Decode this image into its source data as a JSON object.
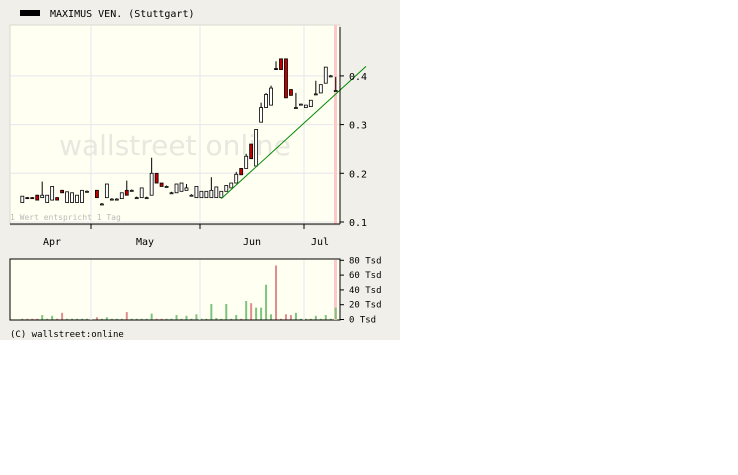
{
  "legend": {
    "title": "MAXIMUS VEN. (Stuttgart)",
    "swatch_color": "#000000"
  },
  "watermark": "wallstreet online",
  "note": "1 Wert entspricht 1 Tag",
  "copyright": "(C) wallstreet:online",
  "colors": {
    "up": "#ffffff",
    "down": "#c00000",
    "vol_up": "#7dc47d",
    "vol_down": "#e08c8c",
    "plot_bg": "#fffff2",
    "trend": "#008800",
    "current_band": "#ffc8c8"
  },
  "chart_data": [
    {
      "type": "candlestick",
      "ylim": [
        0.1,
        0.49
      ],
      "yticks": [
        "0.1",
        "0.2",
        "0.3",
        "0.4"
      ],
      "ytick_values": [
        0.1,
        0.2,
        0.3,
        0.4
      ],
      "xticks": [
        "Apr",
        "May",
        "Jun",
        "Jul"
      ],
      "grid": true,
      "candles": [
        [
          0.14,
          0.153,
          0.14,
          0.153
        ],
        [
          0.15,
          0.151,
          0.148,
          0.149
        ],
        [
          0.15,
          0.151,
          0.148,
          0.149
        ],
        [
          0.155,
          0.156,
          0.145,
          0.145
        ],
        [
          0.15,
          0.183,
          0.15,
          0.155
        ],
        [
          0.14,
          0.155,
          0.14,
          0.155
        ],
        [
          0.145,
          0.173,
          0.145,
          0.173
        ],
        [
          0.15,
          0.151,
          0.145,
          0.145
        ],
        [
          0.165,
          0.166,
          0.16,
          0.16
        ],
        [
          0.14,
          0.162,
          0.14,
          0.162
        ],
        [
          0.14,
          0.16,
          0.14,
          0.16
        ],
        [
          0.14,
          0.155,
          0.14,
          0.155
        ],
        [
          0.14,
          0.165,
          0.14,
          0.165
        ],
        [
          0.163,
          0.165,
          0.161,
          0.163
        ],
        [
          0.165,
          0.166,
          0.15,
          0.15
        ],
        [
          0.137,
          0.139,
          0.135,
          0.137
        ],
        [
          0.15,
          0.178,
          0.15,
          0.178
        ],
        [
          0.147,
          0.149,
          0.145,
          0.147
        ],
        [
          0.147,
          0.149,
          0.145,
          0.147
        ],
        [
          0.148,
          0.16,
          0.148,
          0.16
        ],
        [
          0.165,
          0.185,
          0.155,
          0.155
        ],
        [
          0.165,
          0.167,
          0.163,
          0.165
        ],
        [
          0.15,
          0.152,
          0.148,
          0.15
        ],
        [
          0.15,
          0.17,
          0.15,
          0.17
        ],
        [
          0.15,
          0.152,
          0.148,
          0.15
        ],
        [
          0.155,
          0.232,
          0.155,
          0.2
        ],
        [
          0.2,
          0.2,
          0.18,
          0.18
        ],
        [
          0.18,
          0.18,
          0.173,
          0.173
        ],
        [
          0.173,
          0.175,
          0.171,
          0.173
        ],
        [
          0.16,
          0.162,
          0.158,
          0.16
        ],
        [
          0.16,
          0.178,
          0.16,
          0.178
        ],
        [
          0.163,
          0.18,
          0.163,
          0.18
        ],
        [
          0.165,
          0.178,
          0.165,
          0.17
        ],
        [
          0.155,
          0.157,
          0.153,
          0.155
        ],
        [
          0.15,
          0.173,
          0.15,
          0.173
        ],
        [
          0.15,
          0.163,
          0.15,
          0.163
        ],
        [
          0.15,
          0.163,
          0.15,
          0.163
        ],
        [
          0.15,
          0.192,
          0.15,
          0.165
        ],
        [
          0.15,
          0.172,
          0.15,
          0.172
        ],
        [
          0.15,
          0.163,
          0.15,
          0.163
        ],
        [
          0.163,
          0.175,
          0.163,
          0.175
        ],
        [
          0.17,
          0.18,
          0.17,
          0.18
        ],
        [
          0.18,
          0.203,
          0.18,
          0.198
        ],
        [
          0.21,
          0.21,
          0.197,
          0.197
        ],
        [
          0.21,
          0.24,
          0.21,
          0.235
        ],
        [
          0.26,
          0.26,
          0.23,
          0.23
        ],
        [
          0.215,
          0.29,
          0.215,
          0.29
        ],
        [
          0.305,
          0.345,
          0.305,
          0.335
        ],
        [
          0.335,
          0.365,
          0.335,
          0.362
        ],
        [
          0.34,
          0.38,
          0.34,
          0.375
        ],
        [
          0.415,
          0.43,
          0.413,
          0.413
        ],
        [
          0.435,
          0.435,
          0.413,
          0.413
        ],
        [
          0.435,
          0.435,
          0.355,
          0.355
        ],
        [
          0.372,
          0.372,
          0.36,
          0.36
        ],
        [
          0.335,
          0.365,
          0.332,
          0.335
        ],
        [
          0.342,
          0.343,
          0.341,
          0.342
        ],
        [
          0.335,
          0.34,
          0.335,
          0.34
        ],
        [
          0.337,
          0.35,
          0.337,
          0.35
        ],
        [
          0.363,
          0.39,
          0.362,
          0.363
        ],
        [
          0.365,
          0.382,
          0.365,
          0.382
        ],
        [
          0.385,
          0.418,
          0.385,
          0.418
        ],
        [
          0.4,
          0.402,
          0.398,
          0.4
        ],
        [
          0.37,
          0.398,
          0.368,
          0.37
        ]
      ],
      "trendline": {
        "from": [
          39,
          0.148
        ],
        "to": [
          63,
          0.372
        ]
      }
    },
    {
      "type": "bar",
      "unit": "Tsd",
      "ylim": [
        0,
        80
      ],
      "yticks": [
        "0 Tsd",
        "20 Tsd",
        "40 Tsd",
        "60 Tsd",
        "80 Tsd"
      ],
      "ytick_values": [
        0,
        20,
        40,
        60,
        80
      ],
      "volumes": [
        1,
        1,
        1,
        1,
        6,
        1,
        5,
        1,
        9,
        1,
        1,
        1,
        1,
        1,
        3,
        1,
        3,
        1,
        1,
        1,
        10,
        1,
        1,
        1,
        1,
        8,
        1,
        1,
        1,
        1,
        6,
        1,
        5,
        1,
        7,
        1,
        1,
        21,
        2,
        1,
        21,
        1,
        6,
        1,
        25,
        22,
        16,
        16,
        47,
        7,
        73,
        1,
        7,
        6,
        9,
        1,
        1,
        1,
        5,
        1,
        6,
        1,
        16
      ]
    }
  ]
}
